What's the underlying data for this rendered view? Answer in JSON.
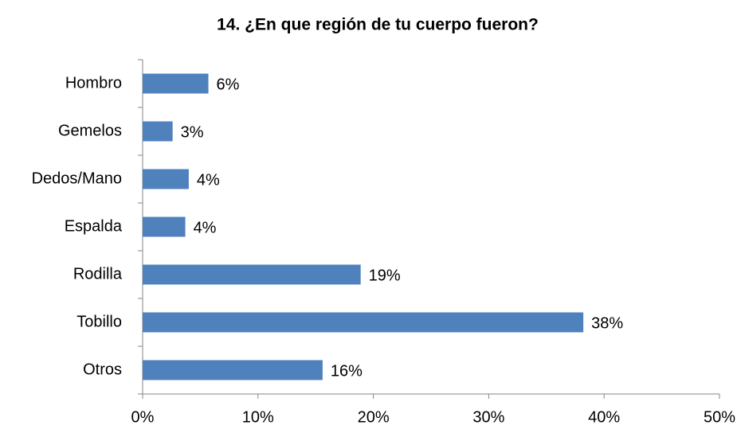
{
  "chart_data": {
    "type": "hbar",
    "title": "14. ¿En que región de tu cuerpo fueron?",
    "categories": [
      "Hombro",
      "Gemelos",
      "Dedos/Mano",
      "Espalda",
      "Rodilla",
      "Tobillo",
      "Otros"
    ],
    "values": [
      5.7,
      2.6,
      4.0,
      3.7,
      18.9,
      38.2,
      15.6
    ],
    "value_labels": [
      "6%",
      "3%",
      "4%",
      "4%",
      "19%",
      "38%",
      "16%"
    ],
    "color": "#4f81bd",
    "xlim": [
      0,
      50
    ],
    "xticks": [
      {
        "value": 0,
        "label": "0%"
      },
      {
        "value": 10,
        "label": "10%"
      },
      {
        "value": 20,
        "label": "20%"
      },
      {
        "value": 30,
        "label": "30%"
      },
      {
        "value": 40,
        "label": "40%"
      },
      {
        "value": 50,
        "label": "50%"
      }
    ],
    "grid": false
  }
}
